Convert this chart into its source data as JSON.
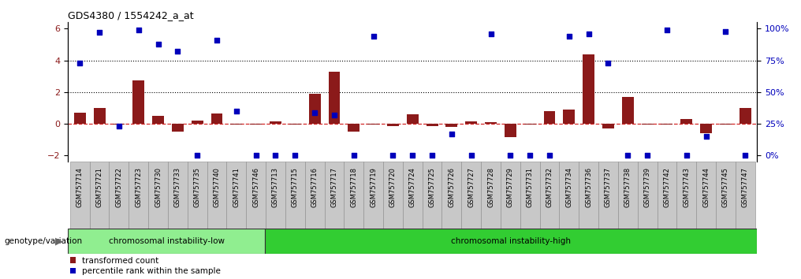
{
  "title": "GDS4380 / 1554242_a_at",
  "samples": [
    "GSM757714",
    "GSM757721",
    "GSM757722",
    "GSM757723",
    "GSM757730",
    "GSM757733",
    "GSM757735",
    "GSM757740",
    "GSM757741",
    "GSM757746",
    "GSM757713",
    "GSM757715",
    "GSM757716",
    "GSM757717",
    "GSM757718",
    "GSM757719",
    "GSM757720",
    "GSM757724",
    "GSM757725",
    "GSM757726",
    "GSM757727",
    "GSM757728",
    "GSM757729",
    "GSM757731",
    "GSM757732",
    "GSM757734",
    "GSM757736",
    "GSM757737",
    "GSM757738",
    "GSM757739",
    "GSM757742",
    "GSM757743",
    "GSM757744",
    "GSM757745",
    "GSM757747"
  ],
  "transformed_count": [
    0.7,
    1.0,
    -0.07,
    2.75,
    0.5,
    -0.5,
    0.2,
    0.65,
    -0.07,
    -0.07,
    0.15,
    -0.07,
    1.9,
    3.3,
    -0.5,
    -0.07,
    -0.15,
    0.6,
    -0.15,
    -0.2,
    0.15,
    0.1,
    -0.85,
    -0.07,
    0.8,
    0.9,
    4.4,
    -0.3,
    1.7,
    -0.07,
    -0.07,
    0.3,
    -0.6,
    -0.07,
    1.0
  ],
  "percentile_pct": [
    73,
    97,
    23,
    99,
    88,
    82,
    0,
    91,
    35,
    0,
    0,
    0,
    34,
    32,
    0,
    94,
    0,
    0,
    0,
    17,
    0,
    96,
    0,
    0,
    0,
    94,
    96,
    73,
    0,
    0,
    99,
    0,
    15,
    98,
    0
  ],
  "group_low_count": 10,
  "group_low_label": "chromosomal instability-low",
  "group_high_label": "chromosomal instability-high",
  "genotype_label": "genotype/variation",
  "left_ylim": [
    -2.4,
    6.4
  ],
  "left_yticks": [
    -2,
    0,
    2,
    4,
    6
  ],
  "right_ytick_pct": [
    0,
    25,
    50,
    75,
    100
  ],
  "bar_color": "#8B1A1A",
  "scatter_color": "#0000BB",
  "low_group_color": "#90EE90",
  "high_group_color": "#32CD32",
  "legend_bar_label": "transformed count",
  "legend_scatter_label": "percentile rank within the sample",
  "hline_dotted": [
    2,
    4
  ],
  "hline_zero_color": "#CC0000",
  "tick_bg_color": "#C8C8C8"
}
